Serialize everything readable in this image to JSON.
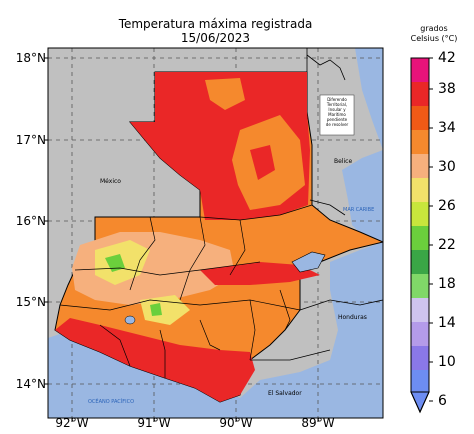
{
  "title": {
    "line1": "Temperatura máxima registrada",
    "line2": "15/06/2023"
  },
  "axes": {
    "y_ticks": [
      "18°N",
      "17°N",
      "16°N",
      "15°N",
      "14°N"
    ],
    "x_ticks": [
      "92°W",
      "91°W",
      "90°W",
      "89°W"
    ]
  },
  "map_labels": {
    "mexico": "México",
    "belice": "Belice",
    "honduras": "Honduras",
    "el_salvador": "El Salvador",
    "mar_caribe": "MAR CARIBE",
    "oceano_pacifico": "OCÉANO PACÍFICO",
    "diferendo": [
      "Diferendo",
      "Territorial,",
      "Insular y",
      "Marítimo",
      "pendiente",
      "de resolver"
    ]
  },
  "colorbar": {
    "title_line1": "grados",
    "title_line2": "Celsius (°C)",
    "ticks": [
      "42",
      "38",
      "34",
      "30",
      "26",
      "22",
      "18",
      "14",
      "10",
      "6"
    ],
    "colors": [
      "#e8137a",
      "#ea2727",
      "#f05a16",
      "#f5892d",
      "#f6b07d",
      "#f2e16a",
      "#c8e63c",
      "#6bcf3c",
      "#3aa646",
      "#cfc4ef",
      "#b49bea",
      "#8a78e8",
      "#6d8df2"
    ]
  },
  "legend_colors": {
    "ocean": "#9ab7e2",
    "land_outside": "#c0c0c0",
    "frame": "#000000"
  }
}
